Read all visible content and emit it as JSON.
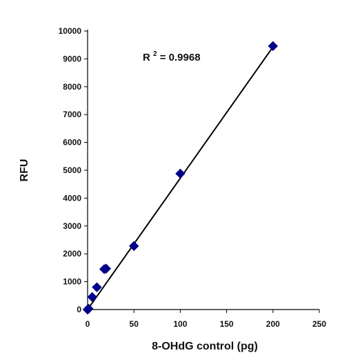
{
  "chart_data": {
    "type": "scatter",
    "title": "",
    "xlabel": "8-OHdG control (pg)",
    "ylabel": "RFU",
    "xlim": [
      0,
      250
    ],
    "ylim": [
      0,
      10000
    ],
    "x_ticks": [
      "0",
      "50",
      "100",
      "150",
      "200",
      "250"
    ],
    "y_ticks": [
      "0",
      "1000",
      "2000",
      "3000",
      "4000",
      "5000",
      "6000",
      "7000",
      "8000",
      "9000",
      "10000"
    ],
    "grid": false,
    "legend": "none",
    "series": [
      {
        "x": [
          0,
          0.5,
          1,
          5,
          10,
          18,
          20,
          50,
          100,
          200
        ],
        "y": [
          0,
          10,
          30,
          450,
          800,
          1450,
          1470,
          2280,
          4880,
          9460
        ],
        "color": "#00008b",
        "marker": "diamond"
      }
    ],
    "trendline": {
      "x": [
        0,
        200
      ],
      "y": [
        0,
        9430
      ],
      "color": "#000000"
    },
    "annotation": {
      "prefix": "R",
      "superscript": "2",
      "suffix": " = 0.9968"
    }
  }
}
